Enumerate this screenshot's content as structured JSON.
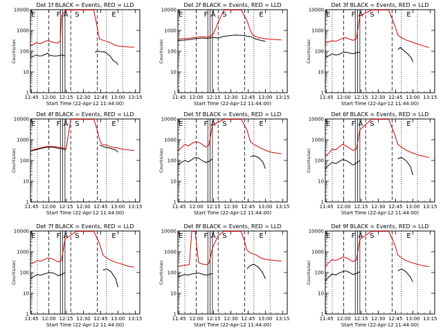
{
  "chart_data": [
    {
      "type": "line",
      "title": "Det 1f BLACK = Events, RED = LLD",
      "xlabel": "Start Time (22-Apr-12 11:44:00)",
      "ylabel": "Counts/sec",
      "yscale": "log",
      "ylim": [
        1,
        10000
      ],
      "x_ticks": [
        "11:45",
        "12:00",
        "12:15",
        "12:30",
        "12:45",
        "13:00",
        "13:15"
      ],
      "y_ticks": [
        "1",
        "10",
        "100",
        "1000",
        "10000"
      ],
      "flags": [
        "E",
        "F",
        "A",
        "S",
        "E"
      ],
      "series": [
        {
          "color": "#000000",
          "x": [
            0,
            2,
            5,
            8,
            10,
            11,
            13,
            15,
            17,
            21,
            24,
            27,
            30,
            40,
            56,
            60,
            62,
            64,
            66,
            69,
            72,
            75,
            76
          ],
          "y": [
            50,
            55,
            65,
            58,
            60,
            65,
            70,
            80,
            62,
            58,
            60,
            65,
            60,
            null,
            90,
            100,
            92,
            95,
            80,
            60,
            35,
            28,
            22
          ]
        },
        {
          "color": "#d00000",
          "x": [
            0,
            2,
            5,
            8,
            10,
            12,
            14,
            17,
            19,
            21,
            24,
            26,
            27,
            31,
            40,
            55,
            60,
            66,
            70,
            73,
            76,
            80,
            85,
            90
          ],
          "y": [
            180,
            200,
            260,
            230,
            250,
            280,
            320,
            300,
            270,
            260,
            250,
            320,
            5000,
            10000,
            10000,
            10000,
            380,
            300,
            250,
            200,
            180,
            170,
            160,
            155
          ]
        }
      ]
    },
    {
      "type": "line",
      "title": "Det 2f BLACK = Events, RED = LLD",
      "xlabel": "Start Time (22-Apr-12 11:44:00)",
      "ylabel": "Counts/sec",
      "yscale": "log",
      "ylim": [
        1,
        10000
      ],
      "x_ticks": [
        "11:45",
        "12:00",
        "12:15",
        "12:30",
        "12:45",
        "13:00",
        "13:15"
      ],
      "y_ticks": [
        "1",
        "10",
        "100",
        "1000",
        "10000"
      ],
      "flags": [
        "E",
        "F",
        "A",
        "S",
        "E"
      ],
      "series": [
        {
          "color": "#000000",
          "x": [
            0,
            5,
            10,
            15,
            20,
            22,
            25,
            28,
            31,
            35,
            40,
            45,
            50,
            55,
            60,
            63,
            65,
            68,
            72,
            76
          ],
          "y": [
            330,
            340,
            360,
            400,
            420,
            430,
            410,
            440,
            460,
            430,
            520,
            560,
            600,
            580,
            530,
            500,
            450,
            380,
            330,
            300
          ]
        },
        {
          "color": "#d00000",
          "x": [
            0,
            5,
            10,
            15,
            20,
            25,
            28,
            31,
            35,
            40,
            45,
            50,
            55,
            60,
            63,
            65,
            70,
            75,
            80,
            85,
            90
          ],
          "y": [
            380,
            400,
            420,
            460,
            500,
            480,
            520,
            700,
            2500,
            10000,
            10000,
            10000,
            10000,
            3000,
            1000,
            600,
            450,
            400,
            380,
            360,
            350
          ]
        }
      ]
    },
    {
      "type": "line",
      "title": "Det 3f BLACK = Events, RED = LLD",
      "xlabel": "Start Time (22-Apr-12 11:44:00)",
      "ylabel": "Counts/sec",
      "yscale": "log",
      "ylim": [
        1,
        10000
      ],
      "x_ticks": [
        "11:45",
        "12:00",
        "12:15",
        "12:30",
        "12:45",
        "13:00",
        "13:15"
      ],
      "y_ticks": [
        "1",
        "10",
        "100",
        "1000",
        "10000"
      ],
      "flags": [
        "E",
        "F",
        "A",
        "S",
        "E"
      ],
      "series": [
        {
          "color": "#000000",
          "x": [
            0,
            3,
            6,
            9,
            12,
            15,
            18,
            21,
            24,
            27,
            30,
            60,
            63,
            65,
            68,
            72,
            75,
            76
          ],
          "y": [
            50,
            60,
            75,
            65,
            70,
            85,
            90,
            80,
            75,
            85,
            90,
            null,
            120,
            150,
            110,
            70,
            45,
            30
          ]
        },
        {
          "color": "#d00000",
          "x": [
            0,
            3,
            6,
            9,
            12,
            15,
            18,
            21,
            24,
            27,
            30,
            40,
            55,
            60,
            63,
            66,
            70,
            75,
            80,
            85,
            90
          ],
          "y": [
            250,
            280,
            320,
            300,
            350,
            420,
            450,
            380,
            330,
            400,
            5000,
            10000,
            10000,
            2000,
            600,
            450,
            350,
            280,
            220,
            180,
            150
          ]
        }
      ]
    },
    {
      "type": "line",
      "title": "Det 4f BLACK = Events, RED = LLD",
      "xlabel": "Start Time (22-Apr-12 11:44:00)",
      "ylabel": "Counts/sec",
      "yscale": "log",
      "ylim": [
        1,
        10000
      ],
      "x_ticks": [
        "11:45",
        "12:00",
        "12:15",
        "12:30",
        "12:45",
        "13:00",
        "13:15"
      ],
      "y_ticks": [
        "1",
        "10",
        "100",
        "1000",
        "10000"
      ],
      "flags": [
        "E",
        "F",
        "A",
        "S",
        "E"
      ],
      "series": [
        {
          "color": "#000000",
          "x": [
            0,
            5,
            10,
            15,
            20,
            25,
            28,
            31,
            56,
            60,
            63,
            66,
            70,
            74,
            76
          ],
          "y": [
            280,
            330,
            390,
            440,
            430,
            380,
            360,
            320,
            null,
            550,
            480,
            420,
            380,
            320,
            250
          ]
        },
        {
          "color": "#d00000",
          "x": [
            0,
            5,
            10,
            15,
            20,
            25,
            28,
            31,
            35,
            55,
            58,
            60,
            62,
            66,
            70,
            75,
            80,
            85,
            90
          ],
          "y": [
            300,
            360,
            420,
            480,
            470,
            420,
            400,
            370,
            10000,
            10000,
            3000,
            1000,
            600,
            550,
            450,
            400,
            350,
            320,
            300
          ]
        }
      ]
    },
    {
      "type": "line",
      "title": "Det 5f BLACK = Events, RED = LLD",
      "xlabel": "Start Time (22-Apr-12 11:44:00)",
      "ylabel": "Counts/sec",
      "yscale": "log",
      "ylim": [
        1,
        10000
      ],
      "x_ticks": [
        "11:45",
        "12:00",
        "12:15",
        "12:30",
        "12:45",
        "13:00",
        "13:15"
      ],
      "y_ticks": [
        "1",
        "10",
        "100",
        "1000",
        "10000"
      ],
      "flags": [
        "E",
        "F",
        "A",
        "S",
        "E"
      ],
      "series": [
        {
          "color": "#000000",
          "x": [
            0,
            3,
            6,
            9,
            12,
            15,
            18,
            21,
            24,
            27,
            30,
            60,
            63,
            66,
            70,
            74,
            76
          ],
          "y": [
            60,
            80,
            100,
            85,
            110,
            140,
            130,
            100,
            80,
            90,
            120,
            null,
            150,
            170,
            140,
            80,
            40
          ]
        },
        {
          "color": "#d00000",
          "x": [
            0,
            3,
            6,
            9,
            12,
            15,
            18,
            21,
            24,
            27,
            30,
            40,
            55,
            60,
            63,
            66,
            70,
            75,
            80,
            85,
            90
          ],
          "y": [
            300,
            400,
            600,
            500,
            650,
            800,
            750,
            600,
            450,
            550,
            5000,
            10000,
            10000,
            3000,
            800,
            600,
            450,
            330,
            260,
            230,
            210
          ]
        }
      ]
    },
    {
      "type": "line",
      "title": "Det 6f BLACK = Events, RED = LLD",
      "xlabel": "Start Time (22-Apr-12 11:44:00)",
      "ylabel": "Counts/sec",
      "yscale": "log",
      "ylim": [
        1,
        10000
      ],
      "x_ticks": [
        "11:45",
        "12:00",
        "12:15",
        "12:30",
        "12:45",
        "13:00",
        "13:15"
      ],
      "y_ticks": [
        "1",
        "10",
        "100",
        "1000",
        "10000"
      ],
      "flags": [
        "E",
        "F",
        "A",
        "S",
        "E"
      ],
      "series": [
        {
          "color": "#000000",
          "x": [
            0,
            3,
            6,
            9,
            12,
            15,
            18,
            21,
            24,
            27,
            30,
            60,
            63,
            66,
            70,
            74,
            76
          ],
          "y": [
            40,
            60,
            80,
            70,
            90,
            110,
            100,
            80,
            60,
            75,
            100,
            null,
            120,
            140,
            100,
            50,
            20
          ]
        },
        {
          "color": "#d00000",
          "x": [
            0,
            3,
            6,
            9,
            12,
            15,
            18,
            21,
            24,
            27,
            30,
            40,
            55,
            60,
            63,
            66,
            70,
            75,
            80,
            85,
            90
          ],
          "y": [
            150,
            220,
            350,
            320,
            450,
            600,
            500,
            400,
            300,
            350,
            3000,
            10000,
            10000,
            2000,
            600,
            450,
            320,
            240,
            190,
            160,
            140
          ]
        }
      ]
    },
    {
      "type": "line",
      "title": "Det 7f BLACK = Events, RED = LLD",
      "xlabel": "Start Time (22-Apr-12 11:44:00)",
      "ylabel": "Counts/sec",
      "yscale": "log",
      "ylim": [
        1,
        10000
      ],
      "x_ticks": [
        "11:45",
        "12:00",
        "12:15",
        "12:30",
        "12:45",
        "13:00",
        "13:15"
      ],
      "y_ticks": [
        "1",
        "10",
        "100",
        "1000",
        "10000"
      ],
      "flags": [
        "E",
        "F",
        "A",
        "S",
        "E"
      ],
      "series": [
        {
          "color": "#000000",
          "x": [
            0,
            3,
            6,
            9,
            12,
            15,
            18,
            21,
            24,
            27,
            30,
            60,
            63,
            66,
            70,
            74,
            76
          ],
          "y": [
            50,
            65,
            80,
            75,
            85,
            95,
            100,
            90,
            70,
            80,
            100,
            null,
            130,
            150,
            110,
            50,
            20
          ]
        },
        {
          "color": "#d00000",
          "x": [
            0,
            3,
            6,
            9,
            12,
            15,
            18,
            21,
            24,
            27,
            30,
            40,
            55,
            60,
            63,
            66,
            70,
            75,
            80,
            85,
            90
          ],
          "y": [
            250,
            300,
            380,
            350,
            420,
            500,
            480,
            400,
            320,
            380,
            4000,
            10000,
            10000,
            2500,
            700,
            500,
            380,
            300,
            250,
            200,
            180
          ]
        }
      ]
    },
    {
      "type": "line",
      "title": "Det 8f BLACK = Events, RED = LLD",
      "xlabel": "Start Time (22-Apr-12 11:44:00)",
      "ylabel": "Counts/sec",
      "yscale": "log",
      "ylim": [
        1,
        10000
      ],
      "x_ticks": [
        "11:45",
        "12:00",
        "12:15",
        "12:30",
        "12:45",
        "13:00",
        "13:15"
      ],
      "y_ticks": [
        "1",
        "10",
        "100",
        "1000",
        "10000"
      ],
      "flags": [
        "E",
        "F",
        "A",
        "S",
        "E"
      ],
      "series": [
        {
          "color": "#000000",
          "x": [
            0,
            3,
            6,
            9,
            12,
            15,
            18,
            21,
            24,
            27,
            30,
            56,
            60,
            63,
            66,
            70,
            74,
            76
          ],
          "y": [
            60,
            70,
            80,
            75,
            85,
            90,
            95,
            85,
            75,
            80,
            90,
            null,
            150,
            220,
            250,
            180,
            90,
            50
          ]
        },
        {
          "color": "#d00000",
          "x": [
            0,
            5,
            10,
            12,
            13,
            15,
            18,
            21,
            24,
            26,
            27,
            28,
            30,
            35,
            40,
            45,
            50,
            55,
            58,
            60,
            63,
            65,
            68,
            70,
            72,
            75,
            80,
            85,
            90
          ],
          "y": [
            200,
            220,
            240,
            10000,
            10000,
            10000,
            300,
            260,
            240,
            250,
            280,
            500,
            1500,
            6000,
            10000,
            10000,
            10000,
            10000,
            3000,
            1200,
            900,
            800,
            700,
            600,
            500,
            450,
            400,
            380,
            350
          ]
        }
      ]
    },
    {
      "type": "line",
      "title": "Det 9f BLACK = Events, RED = LLD",
      "xlabel": "Start Time (22-Apr-12 11:44:00)",
      "ylabel": "Counts/sec",
      "yscale": "log",
      "ylim": [
        1,
        10000
      ],
      "x_ticks": [
        "11:45",
        "12:00",
        "12:15",
        "12:30",
        "12:45",
        "13:00",
        "13:15"
      ],
      "y_ticks": [
        "1",
        "10",
        "100",
        "1000",
        "10000"
      ],
      "flags": [
        "E",
        "F",
        "A",
        "S",
        "E"
      ],
      "series": [
        {
          "color": "#000000",
          "x": [
            0,
            3,
            6,
            9,
            12,
            15,
            18,
            21,
            24,
            27,
            30,
            60,
            63,
            66,
            70,
            74,
            76
          ],
          "y": [
            40,
            60,
            85,
            75,
            95,
            110,
            120,
            100,
            80,
            90,
            110,
            null,
            120,
            150,
            110,
            60,
            35
          ]
        },
        {
          "color": "#d00000",
          "x": [
            0,
            3,
            6,
            9,
            12,
            15,
            18,
            21,
            24,
            27,
            30,
            40,
            55,
            60,
            63,
            66,
            70,
            75,
            80,
            85,
            90
          ],
          "y": [
            200,
            300,
            420,
            380,
            450,
            550,
            520,
            420,
            330,
            400,
            4000,
            10000,
            10000,
            2500,
            700,
            500,
            380,
            300,
            250,
            210,
            190
          ]
        }
      ]
    }
  ]
}
